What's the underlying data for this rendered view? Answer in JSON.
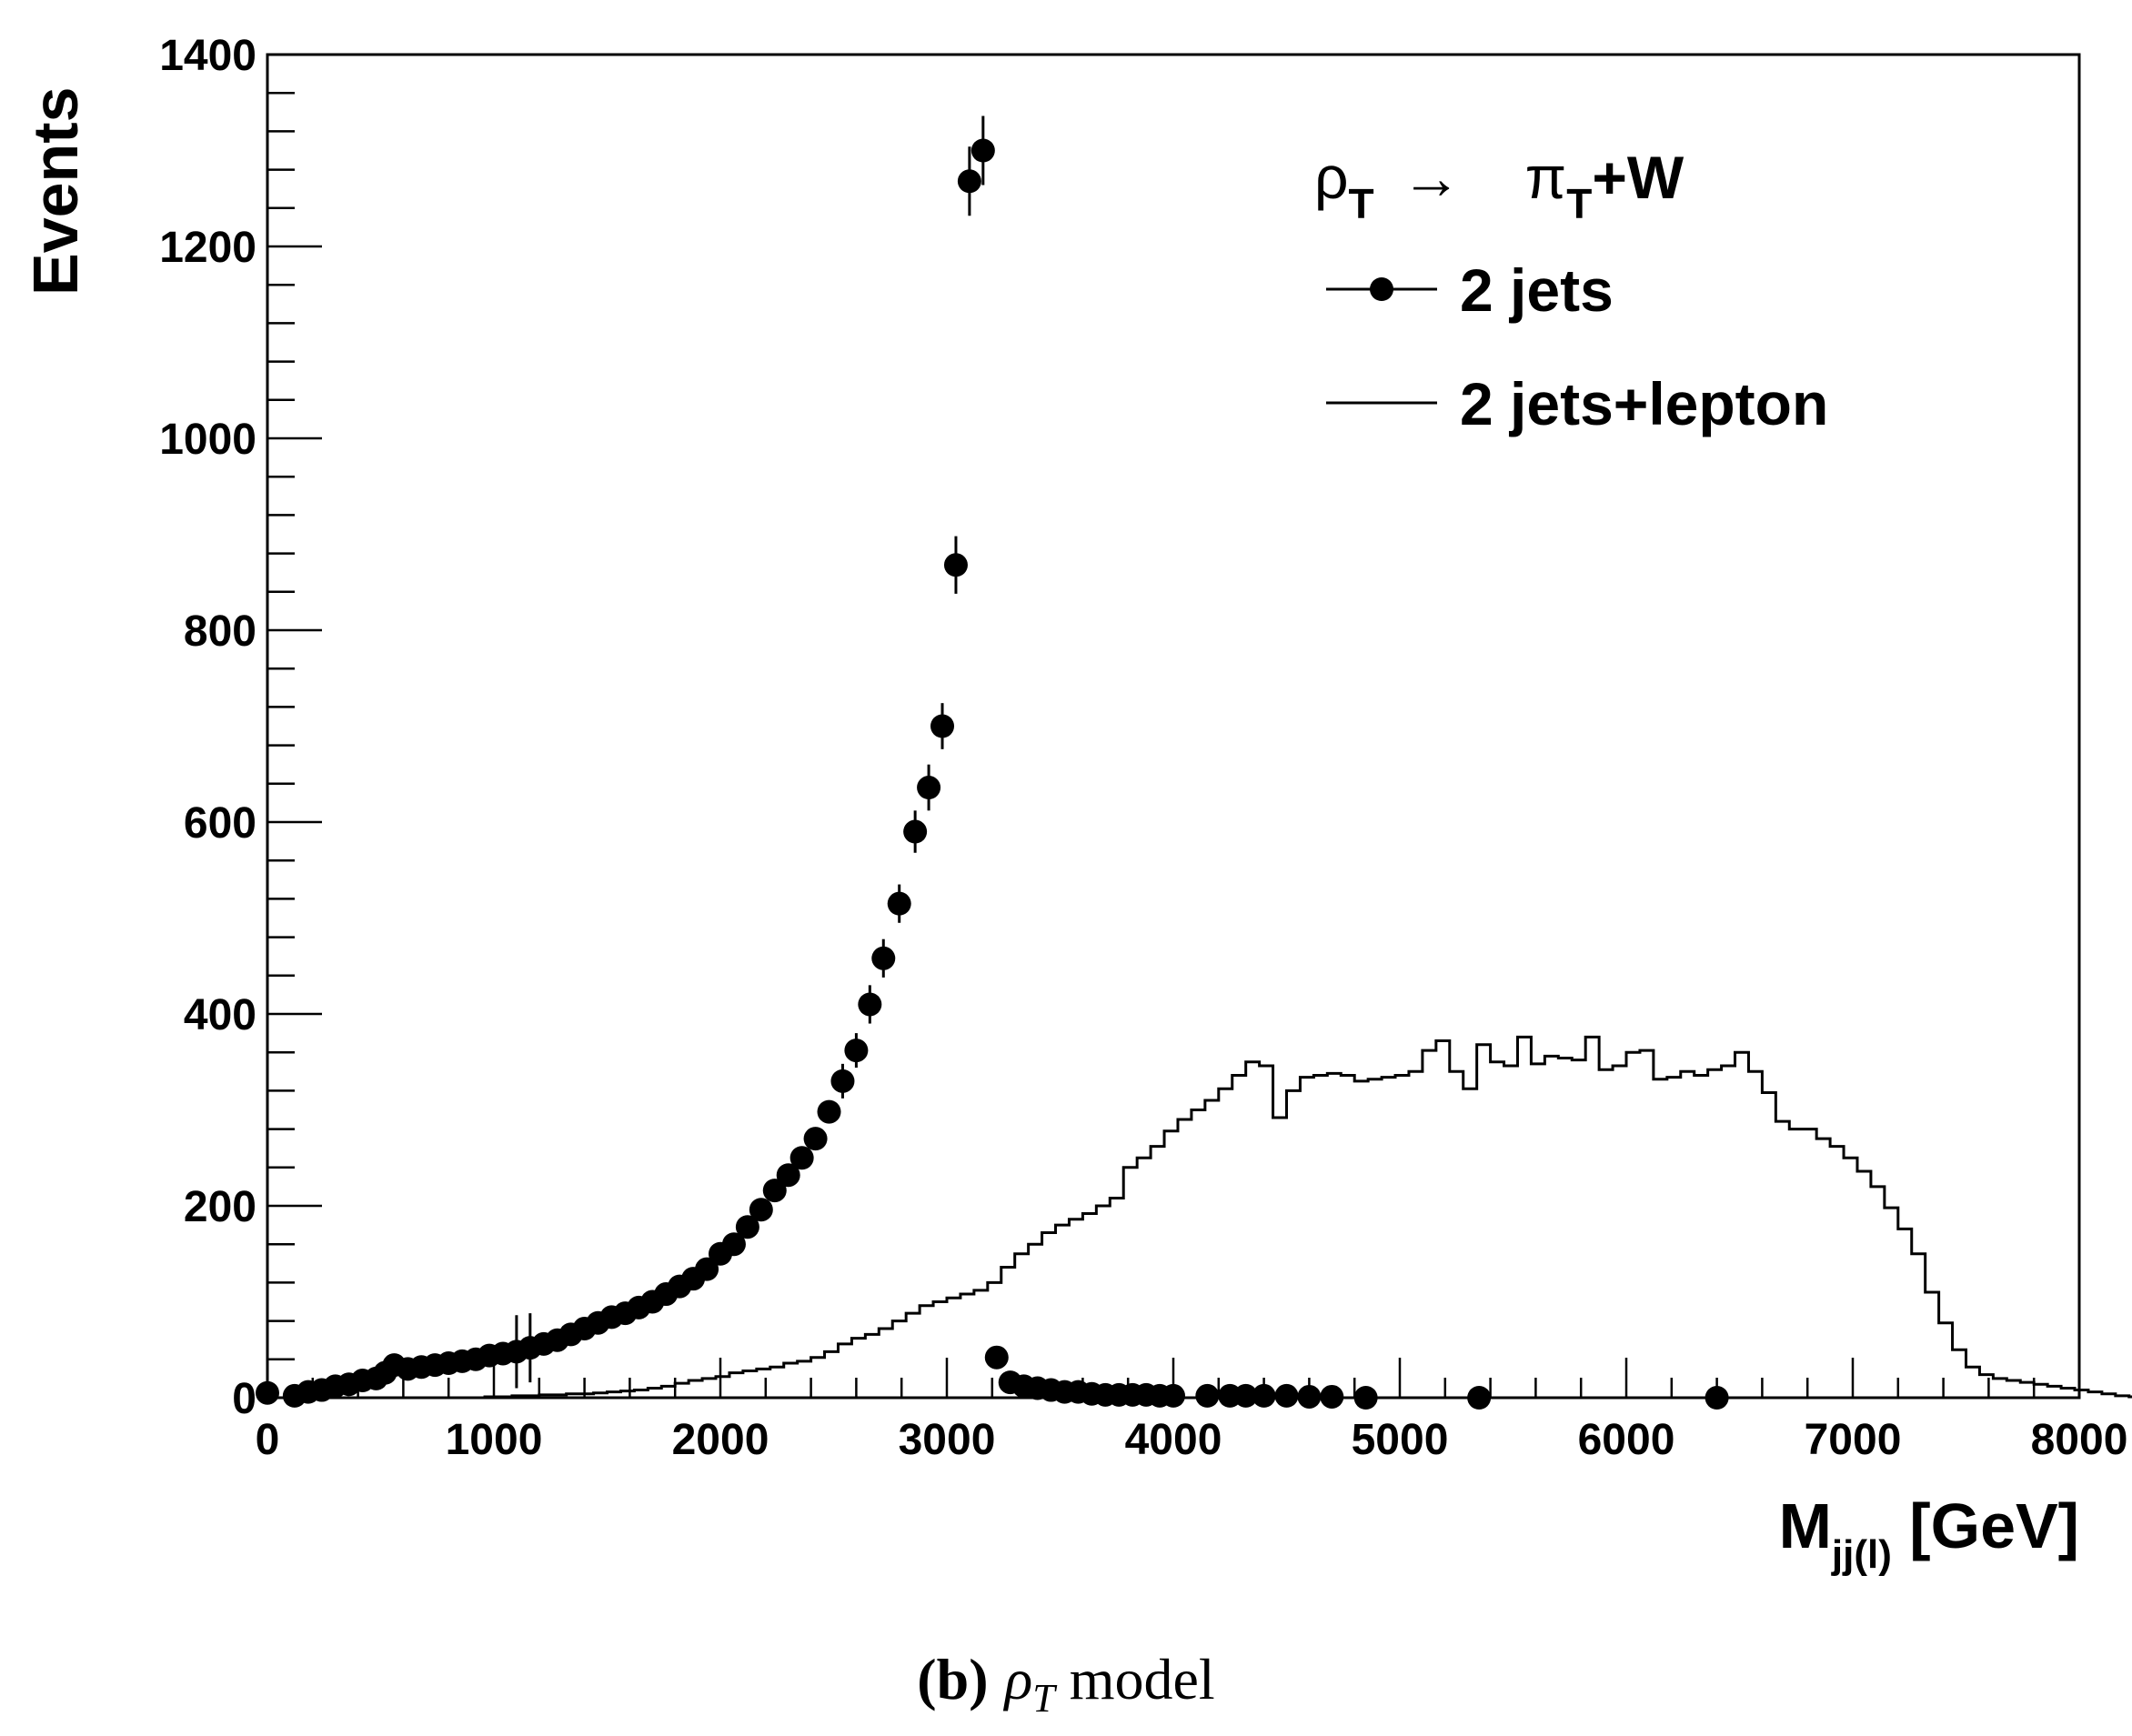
{
  "chart_data": {
    "type": "scatter",
    "title": "",
    "xlabel": {
      "main": "M",
      "sub": "jj(l)",
      "suffix": " [GeV]"
    },
    "ylabel": "Events",
    "xlim": [
      0,
      8000
    ],
    "ylim": [
      0,
      1400
    ],
    "x_major_ticks": [
      0,
      1000,
      2000,
      3000,
      4000,
      5000,
      6000,
      7000,
      8000
    ],
    "y_major_ticks": [
      0,
      200,
      400,
      600,
      800,
      1000,
      1200,
      1400
    ],
    "grid": false,
    "legend": {
      "position": "top-right",
      "header": {
        "rho": "ρ",
        "rho_sub": "T",
        "arrow": "→",
        "pi": "π",
        "pi_sub": "T",
        "rest": "+W"
      },
      "entries": [
        {
          "label": "2 jets",
          "style": "markers"
        },
        {
          "label": "2 jets+lepton",
          "style": "line"
        }
      ]
    },
    "series": [
      {
        "name": "2 jets",
        "style": "markers-with-errors",
        "points": [
          [
            0,
            5
          ],
          [
            120,
            2
          ],
          [
            180,
            6
          ],
          [
            240,
            8
          ],
          [
            300,
            12
          ],
          [
            360,
            14
          ],
          [
            420,
            18
          ],
          [
            480,
            20
          ],
          [
            520,
            26
          ],
          [
            560,
            34
          ],
          [
            620,
            30
          ],
          [
            680,
            32
          ],
          [
            740,
            34
          ],
          [
            800,
            36
          ],
          [
            860,
            38
          ],
          [
            920,
            40
          ],
          [
            980,
            44
          ],
          [
            1040,
            46
          ],
          [
            1100,
            48
          ],
          [
            1160,
            52
          ],
          [
            1220,
            56
          ],
          [
            1280,
            60
          ],
          [
            1340,
            66
          ],
          [
            1400,
            72
          ],
          [
            1460,
            78
          ],
          [
            1520,
            84
          ],
          [
            1580,
            88
          ],
          [
            1640,
            94
          ],
          [
            1700,
            100
          ],
          [
            1760,
            108
          ],
          [
            1820,
            116
          ],
          [
            1880,
            124
          ],
          [
            1940,
            134
          ],
          [
            2000,
            150
          ],
          [
            2060,
            160
          ],
          [
            2120,
            178
          ],
          [
            2180,
            196
          ],
          [
            2240,
            216
          ],
          [
            2300,
            232
          ],
          [
            2360,
            250
          ],
          [
            2420,
            270
          ],
          [
            2480,
            298
          ],
          [
            2540,
            330
          ],
          [
            2600,
            362
          ],
          [
            2660,
            410
          ],
          [
            2720,
            458
          ],
          [
            2790,
            515
          ],
          [
            2860,
            590
          ],
          [
            2920,
            636
          ],
          [
            2980,
            700
          ],
          [
            3040,
            868
          ],
          [
            3100,
            1268
          ],
          [
            3160,
            1300
          ],
          [
            3220,
            42
          ],
          [
            3280,
            16
          ],
          [
            3340,
            12
          ],
          [
            3400,
            10
          ],
          [
            3460,
            8
          ],
          [
            3520,
            6
          ],
          [
            3580,
            6
          ],
          [
            3640,
            4
          ],
          [
            3700,
            3
          ],
          [
            3760,
            3
          ],
          [
            3820,
            3
          ],
          [
            3880,
            3
          ],
          [
            3940,
            2
          ],
          [
            4000,
            2
          ],
          [
            4150,
            2
          ],
          [
            4250,
            2
          ],
          [
            4320,
            2
          ],
          [
            4400,
            2
          ],
          [
            4500,
            2
          ],
          [
            4600,
            1
          ],
          [
            4700,
            1
          ],
          [
            4850,
            0
          ],
          [
            5350,
            0
          ],
          [
            6400,
            0
          ]
        ],
        "errors": [
          [
            1100,
            38
          ],
          [
            1160,
            36
          ],
          [
            2920,
            24
          ],
          [
            2980,
            24
          ],
          [
            3040,
            30
          ],
          [
            3100,
            36
          ],
          [
            3160,
            36
          ],
          [
            2860,
            22
          ],
          [
            2790,
            20
          ],
          [
            2720,
            20
          ],
          [
            2660,
            20
          ],
          [
            2600,
            18
          ],
          [
            2540,
            18
          ]
        ]
      },
      {
        "name": "2 jets+lepton",
        "style": "step-histogram",
        "bin_width": 60,
        "x_start": 0,
        "values": [
          0,
          0,
          0,
          0,
          0,
          0,
          0,
          0,
          0,
          0,
          0,
          0,
          0,
          0,
          0,
          0,
          1,
          1,
          2,
          2,
          3,
          3,
          4,
          4,
          5,
          6,
          7,
          8,
          10,
          12,
          15,
          18,
          20,
          22,
          26,
          28,
          30,
          32,
          36,
          38,
          42,
          48,
          56,
          62,
          66,
          72,
          80,
          88,
          96,
          100,
          104,
          108,
          112,
          120,
          136,
          150,
          160,
          172,
          180,
          186,
          192,
          200,
          208,
          240,
          250,
          262,
          278,
          290,
          300,
          310,
          322,
          336,
          350,
          346,
          292,
          320,
          334,
          336,
          338,
          336,
          330,
          332,
          334,
          336,
          340,
          362,
          372,
          340,
          322,
          368,
          350,
          346,
          376,
          348,
          356,
          354,
          352,
          376,
          342,
          346,
          360,
          362,
          332,
          334,
          340,
          336,
          342,
          346,
          360,
          340,
          318,
          288,
          280,
          280,
          270,
          262,
          250,
          236,
          220,
          198,
          176,
          150,
          110,
          78,
          50,
          32,
          24,
          20,
          18,
          16,
          14,
          12,
          10,
          8,
          6,
          4,
          2,
          1,
          1,
          1,
          0,
          0,
          0,
          0,
          0,
          0,
          0,
          0,
          0,
          0,
          0,
          0,
          0,
          0,
          0,
          0,
          0,
          0,
          0,
          0,
          0,
          0,
          0,
          0,
          0,
          0,
          0,
          0,
          0,
          0,
          0,
          0,
          0,
          0,
          0,
          0,
          0,
          0,
          0,
          0
        ]
      }
    ]
  },
  "caption": {
    "panel": "(b)",
    "symbol": "ρ",
    "symbol_sub": "T",
    "text": " model"
  }
}
